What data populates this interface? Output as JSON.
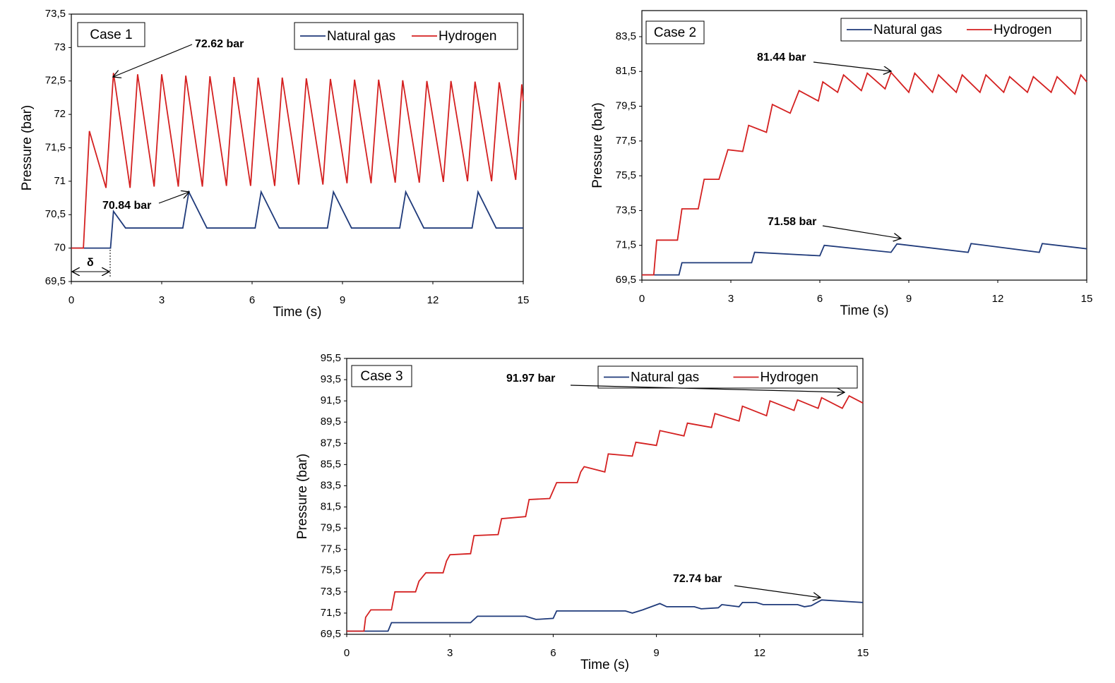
{
  "chart_data": [
    {
      "type": "line",
      "xlabel": "Time (s)",
      "ylabel": "Pressure (bar)",
      "legend": "upper right",
      "xlim": [
        0,
        15
      ],
      "xticks": [
        0,
        3,
        6,
        9,
        12,
        15
      ],
      "ylim": [
        69.5,
        73.5
      ],
      "yticks": [
        {
          "value": 69.5,
          "label": "69,5"
        },
        70,
        {
          "value": 70.5,
          "label": "70,5"
        },
        71,
        {
          "value": 71.5,
          "label": "71,5"
        },
        72,
        {
          "value": 72.5,
          "label": "72,5"
        },
        73,
        {
          "value": 73.5,
          "label": "73,5"
        }
      ],
      "annotations": [
        "Case 1",
        "72.62 bar",
        "70.84 bar",
        "δ"
      ],
      "series": [
        {
          "name": "Natural gas",
          "color": "#1f3a7a",
          "x": [
            0,
            1.3,
            1.4,
            1.8,
            3.7,
            3.9,
            4.5,
            6.1,
            6.3,
            6.9,
            8.5,
            8.7,
            9.3,
            10.9,
            11.1,
            11.7,
            13.3,
            13.5,
            14.1,
            15
          ],
          "values": [
            70,
            70,
            70.55,
            70.3,
            70.3,
            70.84,
            70.3,
            70.3,
            70.84,
            70.3,
            70.3,
            70.84,
            70.3,
            70.3,
            70.84,
            70.3,
            70.3,
            70.84,
            70.3,
            70.3
          ]
        },
        {
          "name": "Hydrogen",
          "color": "#d42020",
          "x": [
            0,
            0.4,
            0.6,
            1.15,
            1.4,
            1.95,
            2.2,
            2.75,
            3.0,
            3.55,
            3.8,
            4.35,
            4.6,
            5.15,
            5.4,
            5.95,
            6.2,
            6.75,
            7.0,
            7.55,
            7.8,
            8.35,
            8.6,
            9.15,
            9.4,
            9.95,
            10.2,
            10.75,
            11.0,
            11.55,
            11.8,
            12.35,
            12.6,
            13.15,
            13.4,
            13.95,
            14.2,
            14.75,
            14.95,
            15
          ],
          "values": [
            70,
            70,
            71.75,
            70.9,
            72.62,
            70.9,
            72.6,
            70.92,
            72.6,
            70.92,
            72.58,
            70.92,
            72.57,
            70.93,
            72.56,
            70.93,
            72.55,
            70.93,
            72.55,
            70.95,
            72.54,
            70.95,
            72.53,
            70.97,
            72.52,
            70.97,
            72.52,
            70.98,
            72.51,
            70.98,
            72.5,
            70.99,
            72.5,
            71.0,
            72.49,
            71.0,
            72.48,
            71.02,
            72.45,
            72.2
          ]
        }
      ]
    },
    {
      "type": "line",
      "xlabel": "Time (s)",
      "ylabel": "Pressure (bar)",
      "legend": "upper right",
      "xlim": [
        0,
        15
      ],
      "xticks": [
        0,
        3,
        6,
        9,
        12,
        15
      ],
      "ylim": [
        69.5,
        85
      ],
      "yticks": [
        {
          "value": 69.5,
          "label": "69,5"
        },
        {
          "value": 71.5,
          "label": "71,5"
        },
        {
          "value": 73.5,
          "label": "73,5"
        },
        {
          "value": 75.5,
          "label": "75,5"
        },
        {
          "value": 77.5,
          "label": "77,5"
        },
        {
          "value": 79.5,
          "label": "79,5"
        },
        {
          "value": 81.5,
          "label": "81,5"
        },
        {
          "value": 83.5,
          "label": "83,5"
        }
      ],
      "annotations": [
        "Case 2",
        "81.44 bar",
        "71.58 bar"
      ],
      "series": [
        {
          "name": "Natural gas",
          "color": "#1f3a7a",
          "x": [
            0,
            1.25,
            1.35,
            3.7,
            3.8,
            6.0,
            6.15,
            8.4,
            8.6,
            11.0,
            11.1,
            13.4,
            13.5,
            15
          ],
          "values": [
            69.8,
            69.8,
            70.5,
            70.5,
            71.1,
            70.9,
            71.5,
            71.1,
            71.58,
            71.1,
            71.6,
            71.1,
            71.6,
            71.3
          ]
        },
        {
          "name": "Hydrogen",
          "color": "#d42020",
          "x": [
            0,
            0.4,
            0.5,
            1.2,
            1.35,
            1.9,
            2.1,
            2.6,
            2.9,
            3.4,
            3.6,
            4.2,
            4.4,
            5.0,
            5.3,
            5.95,
            6.1,
            6.6,
            6.8,
            7.4,
            7.6,
            8.2,
            8.4,
            9.0,
            9.2,
            9.8,
            10.0,
            10.6,
            10.8,
            11.4,
            11.6,
            12.2,
            12.4,
            13.0,
            13.2,
            13.8,
            14.0,
            14.6,
            14.8,
            15
          ],
          "values": [
            69.8,
            69.8,
            71.8,
            71.8,
            73.6,
            73.6,
            75.3,
            75.3,
            77.0,
            76.9,
            78.4,
            78.0,
            79.6,
            79.1,
            80.4,
            79.8,
            80.9,
            80.3,
            81.3,
            80.4,
            81.4,
            80.5,
            81.44,
            80.3,
            81.4,
            80.3,
            81.3,
            80.3,
            81.3,
            80.3,
            81.3,
            80.3,
            81.2,
            80.3,
            81.2,
            80.3,
            81.2,
            80.2,
            81.3,
            80.9
          ]
        }
      ]
    },
    {
      "type": "line",
      "xlabel": "Time (s)",
      "ylabel": "Pressure (bar)",
      "legend": "upper right",
      "xlim": [
        0,
        15
      ],
      "xticks": [
        0,
        3,
        6,
        9,
        12,
        15
      ],
      "ylim": [
        69.5,
        95.5
      ],
      "yticks": [
        {
          "value": 69.5,
          "label": "69,5"
        },
        {
          "value": 71.5,
          "label": "71,5"
        },
        {
          "value": 73.5,
          "label": "73,5"
        },
        {
          "value": 75.5,
          "label": "75,5"
        },
        {
          "value": 77.5,
          "label": "77,5"
        },
        {
          "value": 79.5,
          "label": "79,5"
        },
        {
          "value": 81.5,
          "label": "81,5"
        },
        {
          "value": 83.5,
          "label": "83,5"
        },
        {
          "value": 85.5,
          "label": "85,5"
        },
        {
          "value": 87.5,
          "label": "87,5"
        },
        {
          "value": 89.5,
          "label": "89,5"
        },
        {
          "value": 91.5,
          "label": "91,5"
        },
        {
          "value": 93.5,
          "label": "93,5"
        },
        {
          "value": 95.5,
          "label": "95,5"
        }
      ],
      "annotations": [
        "Case 3",
        "91.97 bar",
        "72.74 bar"
      ],
      "series": [
        {
          "name": "Natural gas",
          "color": "#1f3a7a",
          "x": [
            0,
            1.2,
            1.3,
            2.5,
            3.6,
            3.8,
            5.2,
            5.5,
            6.0,
            6.1,
            8.1,
            8.3,
            8.6,
            9.1,
            9.3,
            10.1,
            10.3,
            10.8,
            10.9,
            11.4,
            11.5,
            11.9,
            12.1,
            13.1,
            13.3,
            13.5,
            13.8,
            15
          ],
          "values": [
            69.8,
            69.8,
            70.6,
            70.6,
            70.6,
            71.2,
            71.2,
            70.9,
            71.0,
            71.7,
            71.7,
            71.5,
            71.8,
            72.4,
            72.1,
            72.1,
            71.9,
            72.0,
            72.3,
            72.1,
            72.5,
            72.5,
            72.3,
            72.3,
            72.1,
            72.2,
            72.74,
            72.5
          ]
        },
        {
          "name": "Hydrogen",
          "color": "#d42020",
          "x": [
            0,
            0.5,
            0.55,
            0.7,
            1.3,
            1.4,
            2.0,
            2.1,
            2.3,
            2.8,
            2.9,
            3.0,
            3.6,
            3.7,
            4.4,
            4.5,
            5.2,
            5.3,
            5.9,
            6.1,
            6.7,
            6.8,
            6.9,
            7.5,
            7.6,
            8.3,
            8.4,
            9.0,
            9.1,
            9.8,
            9.9,
            10.6,
            10.7,
            11.4,
            11.5,
            12.2,
            12.3,
            13.0,
            13.1,
            13.7,
            13.8,
            14.4,
            14.6,
            15
          ],
          "values": [
            69.8,
            69.8,
            71.1,
            71.8,
            71.8,
            73.5,
            73.5,
            74.5,
            75.3,
            75.3,
            76.4,
            77.0,
            77.1,
            78.8,
            78.9,
            80.4,
            80.6,
            82.2,
            82.3,
            83.8,
            83.8,
            84.8,
            85.3,
            84.8,
            86.5,
            86.3,
            87.6,
            87.3,
            88.7,
            88.2,
            89.4,
            89.0,
            90.3,
            89.6,
            91.0,
            90.1,
            91.5,
            90.6,
            91.6,
            90.8,
            91.8,
            90.8,
            91.97,
            91.3
          ]
        }
      ]
    }
  ]
}
